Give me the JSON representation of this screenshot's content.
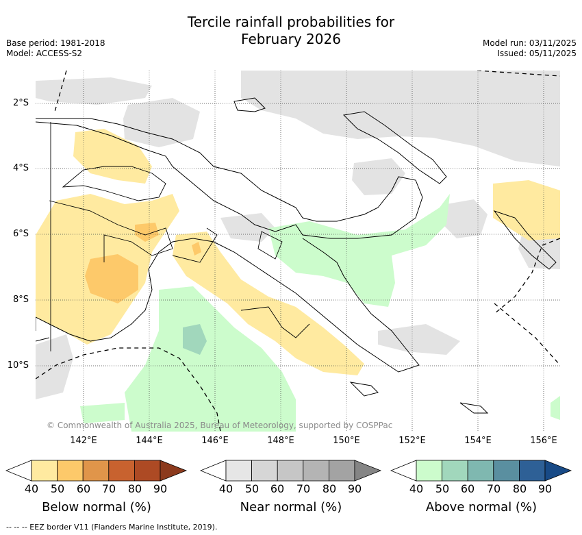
{
  "title_line1": "Tercile rainfall probabilities for",
  "title_line2": "February 2026",
  "meta_left": [
    "Base period: 1981-2018",
    "Model: ACCESS-S2"
  ],
  "meta_right": [
    "Model run: 03/11/2025",
    "Issued: 05/11/2025"
  ],
  "map": {
    "lat_labels": [
      "2°S",
      "4°S",
      "6°S",
      "8°S",
      "10°S"
    ],
    "lon_labels": [
      "142°E",
      "144°E",
      "146°E",
      "148°E",
      "150°E",
      "152°E",
      "154°E",
      "156°E"
    ],
    "copyright": "© Commonwealth of Australia 2025, Bureau of Meteorology, supported by COSPPac"
  },
  "colorbars": [
    {
      "label": "Below normal (%)",
      "ticks": [
        "40",
        "50",
        "60",
        "70",
        "80",
        "90"
      ],
      "colors": [
        "#ffffff",
        "#ffeaa0",
        "#fdc96a",
        "#e0954a",
        "#c8622f",
        "#ad4a24",
        "#8c3a1d"
      ]
    },
    {
      "label": "Near normal (%)",
      "ticks": [
        "40",
        "50",
        "60",
        "70",
        "80",
        "90"
      ],
      "colors": [
        "#ffffff",
        "#e6e6e6",
        "#d6d6d6",
        "#c6c6c6",
        "#b4b4b4",
        "#a3a3a3",
        "#858585"
      ]
    },
    {
      "label": "Above normal (%)",
      "ticks": [
        "40",
        "50",
        "60",
        "70",
        "80",
        "90"
      ],
      "colors": [
        "#ffffff",
        "#ccfccc",
        "#a1d7bc",
        "#7fb8b0",
        "#5a8fa0",
        "#2e6096",
        "#184a86"
      ]
    }
  ],
  "footer": "--  --  -- EEZ border V11 (Flanders Marine Institute, 2019)."
}
